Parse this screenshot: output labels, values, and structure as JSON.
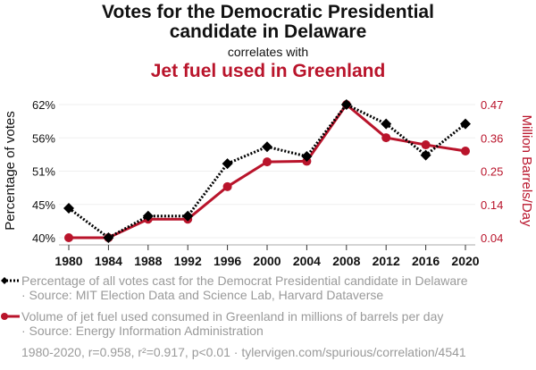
{
  "title_line1": "Votes for the Democratic Presidential",
  "title_line2": "candidate in Delaware",
  "subtitle": "correlates with",
  "title2": "Jet fuel used in Greenland",
  "legend": {
    "series1_line1": "Percentage of all votes cast for the Democrat Presidential candidate in Delaware",
    "series1_line2": "· Source: MIT Election Data and Science Lab, Harvard Dataverse",
    "series2_line1": "Volume of jet fuel used consumed in Greenland in millions of barrels per day",
    "series2_line2": "· Source: Energy Information Administration"
  },
  "footer": "1980-2020, r=0.958, r²=0.917, p<0.01 · tylervigen.com/spurious/correlation/4541",
  "colors": {
    "series1": "#000000",
    "series2": "#b9142b"
  },
  "chart_data": {
    "type": "line",
    "title": "Votes for the Democratic Presidential candidate in Delaware correlates with Jet fuel used in Greenland",
    "xlabel": "",
    "ylabel": "Percentage of votes",
    "y2label": "Million Barrels/Day",
    "x": [
      1980,
      1984,
      1988,
      1992,
      1996,
      2000,
      2004,
      2008,
      2012,
      2016,
      2020
    ],
    "x_tick_labels": [
      "1980",
      "1984",
      "1988",
      "1992",
      "1996",
      "2000",
      "2004",
      "2008",
      "2012",
      "2016",
      "2020"
    ],
    "y_tick_labels": [
      "40%",
      "45%",
      "51%",
      "56%",
      "62%"
    ],
    "y2_tick_labels": [
      "0.04",
      "0.14",
      "0.25",
      "0.36",
      "0.47"
    ],
    "ylim": [
      39.9,
      62.0
    ],
    "y2lim": [
      0.04,
      0.47
    ],
    "grid": true,
    "legend_position": "bottom",
    "series": [
      {
        "name": "Percentage of all votes cast for the Democrat Presidential candidate in Delaware",
        "axis": "left",
        "marker": "diamond",
        "style": "dotted",
        "values": [
          44.8,
          39.9,
          43.5,
          43.5,
          52.2,
          55.0,
          53.4,
          62.0,
          58.8,
          53.6,
          58.8
        ]
      },
      {
        "name": "Volume of jet fuel used consumed in Greenland in millions of barrels per day",
        "axis": "right",
        "marker": "circle",
        "style": "solid",
        "values": [
          0.04,
          0.04,
          0.1,
          0.1,
          0.205,
          0.285,
          0.287,
          0.47,
          0.363,
          0.34,
          0.32
        ]
      }
    ]
  }
}
